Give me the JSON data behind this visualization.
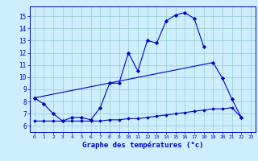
{
  "title": "Graphe des températures (°c)",
  "xlabel": "Graphe des températures (°c)",
  "background_color": "#cceeff",
  "line_color": "#0000cc",
  "grid_color": "#99cccc",
  "ylim": [
    5.5,
    15.8
  ],
  "xlim": [
    -0.5,
    23.5
  ],
  "yticks": [
    6,
    7,
    8,
    9,
    10,
    11,
    12,
    13,
    14,
    15
  ],
  "xticks": [
    0,
    1,
    2,
    3,
    4,
    5,
    6,
    7,
    8,
    9,
    10,
    11,
    12,
    13,
    14,
    15,
    16,
    17,
    18,
    19,
    20,
    21,
    22,
    23
  ],
  "s1_x": [
    0,
    1,
    2,
    3,
    4,
    5,
    6,
    7,
    8,
    9,
    10,
    11,
    12,
    13,
    14,
    15,
    16,
    17,
    18
  ],
  "s1_y": [
    8.3,
    7.8,
    7.0,
    6.4,
    6.7,
    6.7,
    6.5,
    7.5,
    9.5,
    9.5,
    12.0,
    10.5,
    13.0,
    12.8,
    14.6,
    15.1,
    15.3,
    14.8,
    12.5
  ],
  "s2_x": [
    0,
    19,
    20,
    21,
    22
  ],
  "s2_y": [
    8.3,
    11.2,
    9.9,
    8.2,
    6.7
  ],
  "s3_x": [
    0,
    1,
    2,
    3,
    4,
    5,
    6,
    7,
    8,
    9,
    10,
    11,
    12,
    13,
    14,
    15,
    16,
    17,
    18,
    19,
    20,
    21,
    22
  ],
  "s3_y": [
    6.4,
    6.4,
    6.4,
    6.4,
    6.4,
    6.4,
    6.4,
    6.4,
    6.5,
    6.5,
    6.6,
    6.6,
    6.7,
    6.8,
    6.9,
    7.0,
    7.1,
    7.2,
    7.3,
    7.4,
    7.4,
    7.5,
    6.7
  ]
}
